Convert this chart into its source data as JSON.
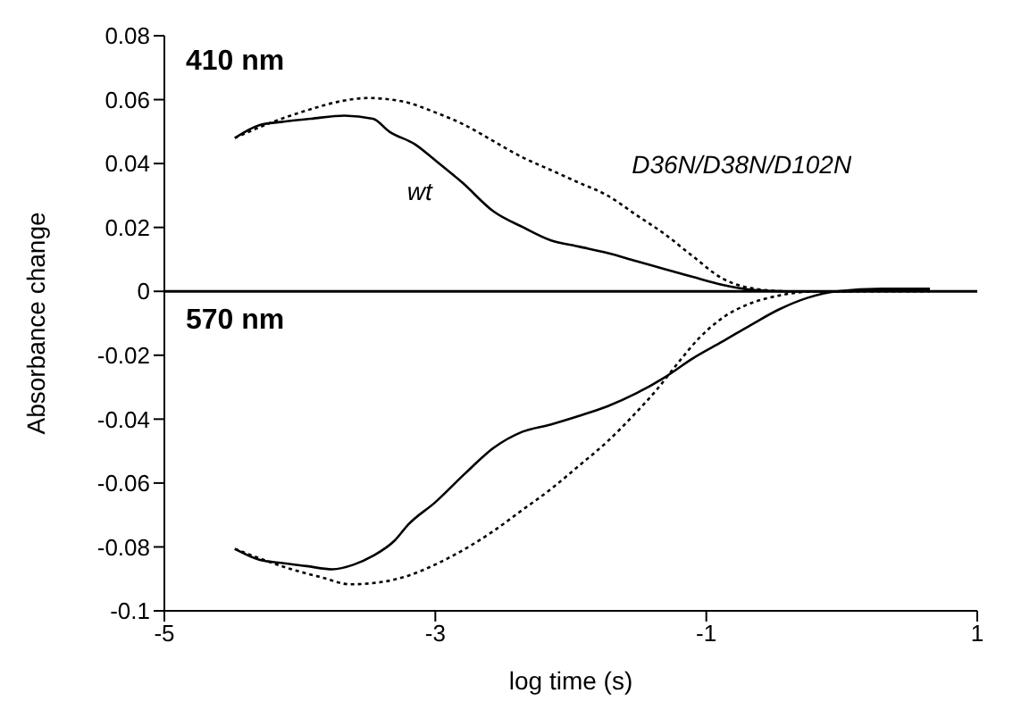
{
  "chart_data": {
    "type": "line",
    "xlabel": "log time (s)",
    "ylabel": "Absorbance change",
    "xlim": [
      -5,
      1
    ],
    "xticks": [
      -5,
      -3,
      -1,
      1
    ],
    "ylim": [
      -0.1,
      0.08
    ],
    "yticks": [
      0.08,
      0.06,
      0.04,
      0.02,
      0,
      -0.02,
      -0.04,
      -0.06,
      -0.08,
      -0.1
    ],
    "marker": "none",
    "ref_lines": [
      {
        "axis": "y",
        "value": 0,
        "color": "#000000"
      }
    ],
    "annotations": [
      "410 nm",
      "570 nm"
    ],
    "series": [
      {
        "name": "wt",
        "color": "#000000",
        "line_style": "solid",
        "x": [
          -4.48,
          -4.3,
          -4.14,
          -3.92,
          -3.67,
          -3.46,
          -3.34,
          -3.15,
          -3.0,
          -2.8,
          -2.57,
          -2.35,
          -2.15,
          -1.94,
          -1.73,
          -1.52,
          -1.31,
          -1.1,
          -0.88,
          -0.67,
          -0.4,
          0,
          0.3,
          0.65
        ],
        "values": [
          0.048,
          0.052,
          0.053,
          0.054,
          0.055,
          0.054,
          0.05,
          0.046,
          0.041,
          0.034,
          0.025,
          0.02,
          0.016,
          0.014,
          0.012,
          0.0095,
          0.007,
          0.0045,
          0.002,
          0.0005,
          0,
          0,
          0.0005,
          0.0008
        ]
      },
      {
        "name": "D36N/D38N/D102N",
        "color": "#000000",
        "line_style": "dotted",
        "x": [
          -4.48,
          -4.2,
          -3.92,
          -3.7,
          -3.5,
          -3.25,
          -3.0,
          -2.78,
          -2.57,
          -2.36,
          -2.15,
          -1.94,
          -1.73,
          -1.52,
          -1.31,
          -1.1,
          -0.88,
          -0.67,
          -0.4,
          0,
          0.3,
          0.65
        ],
        "values": [
          0.048,
          0.053,
          0.057,
          0.0595,
          0.0605,
          0.0595,
          0.056,
          0.052,
          0.047,
          0.042,
          0.038,
          0.034,
          0.03,
          0.024,
          0.018,
          0.011,
          0.004,
          0.001,
          0,
          0,
          0.0003,
          0.0005
        ]
      },
      {
        "color": "#000000",
        "line_style": "solid",
        "x": [
          -4.48,
          -4.3,
          -4.14,
          -3.95,
          -3.76,
          -3.6,
          -3.46,
          -3.3,
          -3.2,
          -3.0,
          -2.78,
          -2.57,
          -2.36,
          -2.15,
          -1.94,
          -1.73,
          -1.52,
          -1.31,
          -1.1,
          -0.88,
          -0.67,
          -0.46,
          -0.25,
          -0.04,
          0.3,
          0.65
        ],
        "values": [
          -0.0806,
          -0.084,
          -0.085,
          -0.086,
          -0.087,
          -0.0855,
          -0.0828,
          -0.078,
          -0.073,
          -0.066,
          -0.057,
          -0.049,
          -0.044,
          -0.0417,
          -0.039,
          -0.036,
          -0.032,
          -0.027,
          -0.021,
          -0.0157,
          -0.0105,
          -0.0056,
          -0.002,
          0,
          0.0008,
          0.0008
        ]
      },
      {
        "color": "#000000",
        "line_style": "dotted",
        "x": [
          -4.48,
          -4.27,
          -4.06,
          -3.84,
          -3.63,
          -3.4,
          -3.2,
          -3.0,
          -2.78,
          -2.57,
          -2.36,
          -2.15,
          -1.94,
          -1.73,
          -1.52,
          -1.37,
          -1.22,
          -1.05,
          -0.88,
          -0.67,
          -0.46,
          -0.2,
          0.2,
          0.65
        ],
        "values": [
          -0.0806,
          -0.084,
          -0.087,
          -0.0895,
          -0.0917,
          -0.091,
          -0.089,
          -0.0855,
          -0.0806,
          -0.075,
          -0.0685,
          -0.062,
          -0.0546,
          -0.047,
          -0.038,
          -0.031,
          -0.023,
          -0.0145,
          -0.0083,
          -0.0037,
          -0.0013,
          0,
          0,
          0
        ]
      }
    ]
  }
}
